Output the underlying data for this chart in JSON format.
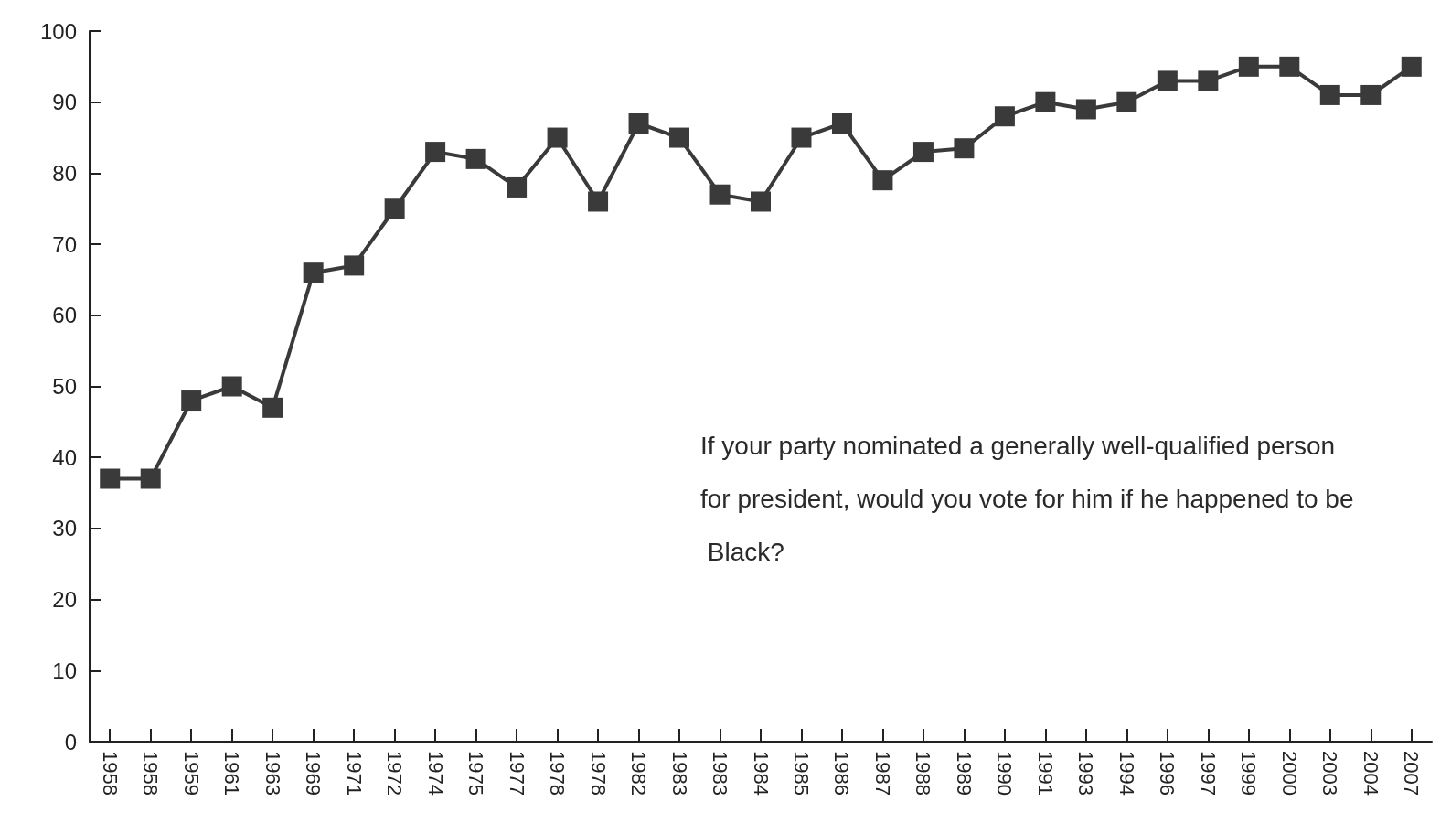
{
  "chart_data": {
    "type": "line",
    "categories": [
      "1958",
      "1958",
      "1959",
      "1961",
      "1963",
      "1969",
      "1971",
      "1972",
      "1974",
      "1975",
      "1977",
      "1978",
      "1978",
      "1982",
      "1983",
      "1983",
      "1984",
      "1985",
      "1986",
      "1987",
      "1988",
      "1989",
      "1990",
      "1991",
      "1993",
      "1994",
      "1996",
      "1997",
      "1999",
      "2000",
      "2003",
      "2004",
      "2007"
    ],
    "values": [
      37,
      37,
      48,
      50,
      47,
      66,
      67,
      75,
      83,
      82,
      78,
      85,
      76,
      87,
      85,
      77,
      76,
      85,
      87,
      79,
      83,
      83.5,
      88,
      90,
      89,
      90,
      93,
      93,
      95,
      95,
      91,
      91,
      95
    ],
    "color": "#3a3a3a",
    "marker": "square",
    "line_style": "solid",
    "ylim": [
      0,
      100
    ],
    "yticks": [
      0,
      10,
      20,
      30,
      40,
      50,
      60,
      70,
      80,
      90,
      100
    ],
    "annotations": [
      "If your party nominated a generally well-qualified person for president, would you vote for him if he happened to be Black?"
    ]
  }
}
